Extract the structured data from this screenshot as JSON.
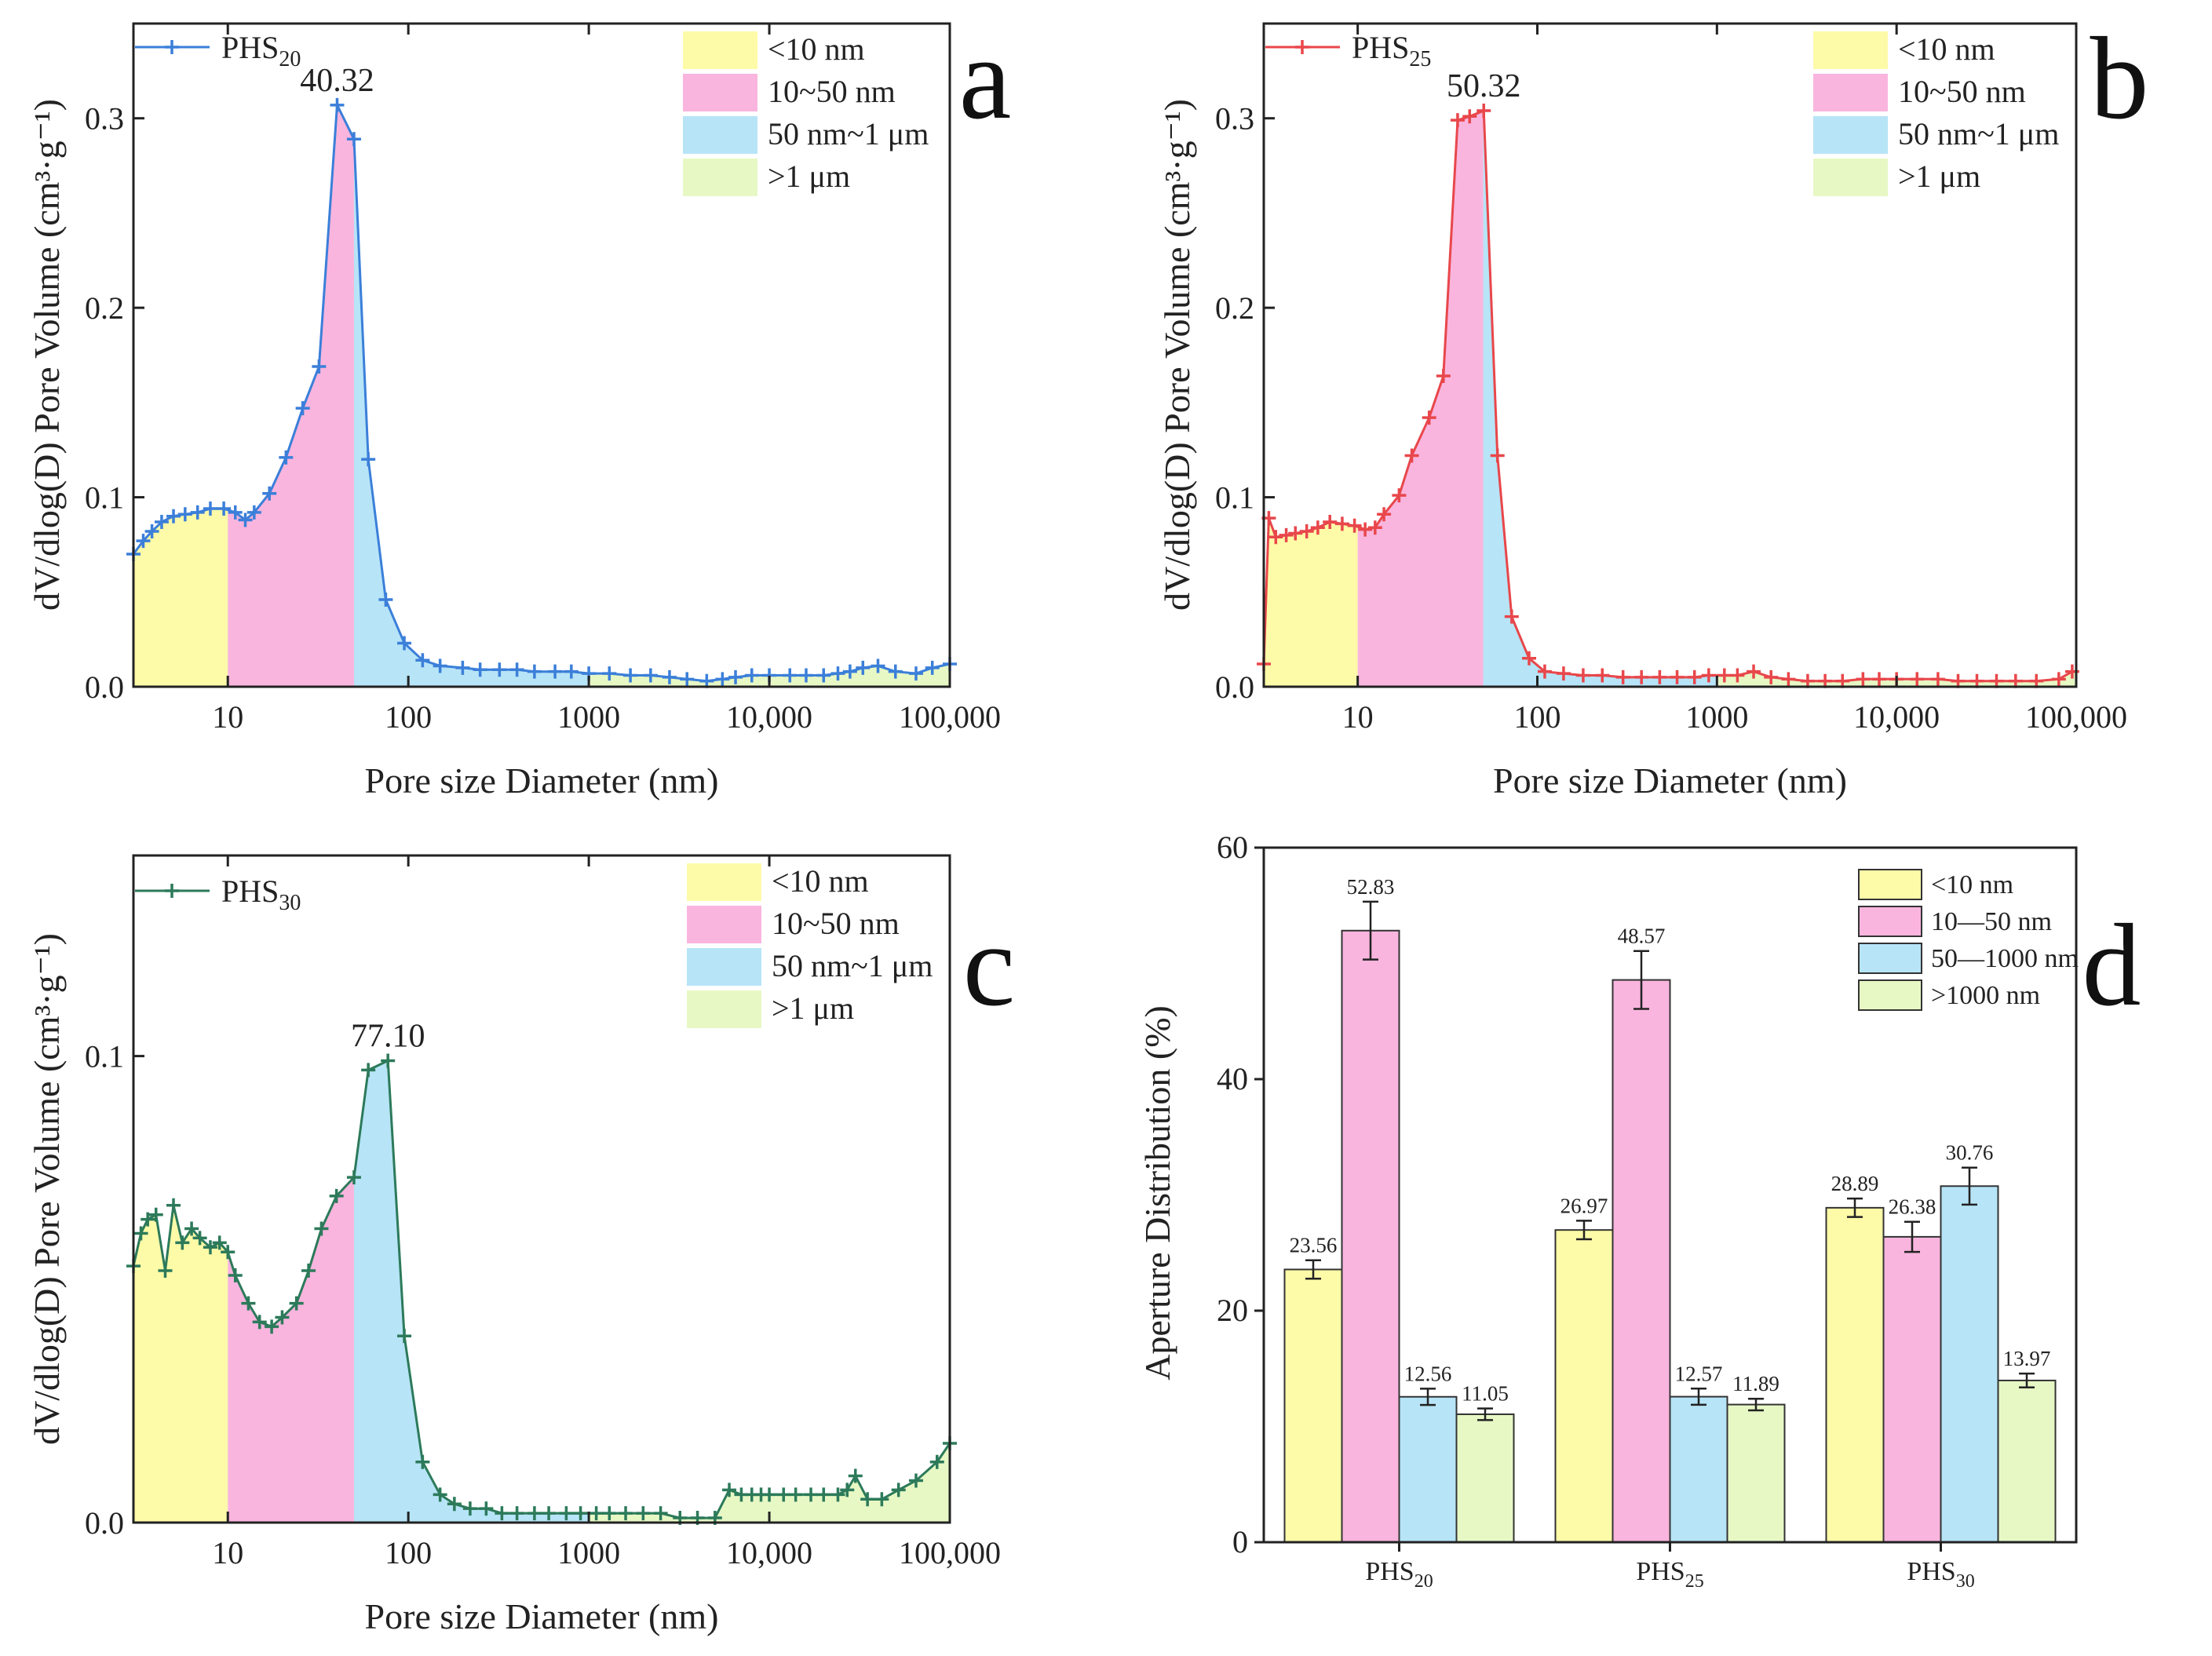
{
  "chart_data": [
    {
      "id": "a",
      "type": "line",
      "panel_letter": "a",
      "series_name": "PHS",
      "series_sub": "20",
      "color": "#3b7fd9",
      "peak_label": "40.32",
      "peak_x": 40.32,
      "xlabel": "Pore size Diameter (nm)",
      "ylabel": "dV/dlog(D) Pore Volume (cm³·g⁻¹)",
      "xscale": "log",
      "xlim": [
        3,
        100000
      ],
      "ylim": [
        0,
        0.35
      ],
      "xticks": [
        10,
        100,
        1000,
        10000,
        100000
      ],
      "xtick_labels": [
        "10",
        "100",
        "1000",
        "10,000",
        "100,000"
      ],
      "yticks": [
        0.0,
        0.1,
        0.2,
        0.3
      ],
      "ytick_labels": [
        "0.0",
        "0.1",
        "0.2",
        "0.3"
      ],
      "x": [
        3,
        3.4,
        3.8,
        4.3,
        5,
        5.8,
        6.8,
        8,
        9.5,
        11,
        12.5,
        14,
        17,
        21,
        26,
        32,
        40.32,
        50,
        60,
        75,
        95,
        120,
        150,
        200,
        250,
        320,
        400,
        500,
        650,
        800,
        1000,
        1300,
        1700,
        2200,
        2800,
        3500,
        4500,
        5500,
        6500,
        8000,
        10000,
        13000,
        16000,
        20000,
        24000,
        28000,
        33000,
        40000,
        50000,
        65000,
        80000,
        100000
      ],
      "y": [
        0.07,
        0.077,
        0.082,
        0.087,
        0.09,
        0.091,
        0.092,
        0.094,
        0.094,
        0.092,
        0.088,
        0.092,
        0.102,
        0.121,
        0.147,
        0.169,
        0.307,
        0.289,
        0.12,
        0.046,
        0.023,
        0.014,
        0.011,
        0.01,
        0.009,
        0.009,
        0.009,
        0.008,
        0.008,
        0.008,
        0.007,
        0.007,
        0.006,
        0.006,
        0.005,
        0.004,
        0.003,
        0.004,
        0.005,
        0.006,
        0.006,
        0.006,
        0.006,
        0.006,
        0.007,
        0.008,
        0.01,
        0.011,
        0.008,
        0.007,
        0.01,
        0.012
      ]
    },
    {
      "id": "b",
      "type": "line",
      "panel_letter": "b",
      "series_name": "PHS",
      "series_sub": "25",
      "color": "#e8474b",
      "peak_label": "50.32",
      "peak_x": 50.32,
      "xlabel": "Pore size Diameter (nm)",
      "ylabel": "dV/dlog(D) Pore Volume (cm³·g⁻¹)",
      "xscale": "log",
      "xlim": [
        3,
        100000
      ],
      "ylim": [
        0,
        0.35
      ],
      "xticks": [
        10,
        100,
        1000,
        10000,
        100000
      ],
      "xtick_labels": [
        "10",
        "100",
        "1000",
        "10,000",
        "100,000"
      ],
      "yticks": [
        0.0,
        0.1,
        0.2,
        0.3
      ],
      "ytick_labels": [
        "0.0",
        "0.1",
        "0.2",
        "0.3"
      ],
      "x": [
        3,
        3.2,
        3.5,
        4,
        4.5,
        5.2,
        6,
        7,
        8.2,
        9.6,
        11,
        12.5,
        14,
        17,
        20,
        25,
        30,
        36,
        42,
        50.32,
        60,
        72,
        90,
        110,
        140,
        180,
        230,
        300,
        380,
        480,
        600,
        750,
        900,
        1100,
        1300,
        1600,
        2000,
        2500,
        3200,
        4000,
        5000,
        6500,
        8000,
        10000,
        13000,
        17000,
        22000,
        28000,
        36000,
        46000,
        60000,
        80000,
        95000
      ],
      "y": [
        0.012,
        0.089,
        0.079,
        0.08,
        0.081,
        0.082,
        0.084,
        0.087,
        0.086,
        0.085,
        0.083,
        0.084,
        0.091,
        0.101,
        0.122,
        0.142,
        0.164,
        0.299,
        0.301,
        0.304,
        0.122,
        0.037,
        0.015,
        0.008,
        0.007,
        0.006,
        0.006,
        0.005,
        0.005,
        0.005,
        0.005,
        0.005,
        0.006,
        0.006,
        0.006,
        0.008,
        0.005,
        0.004,
        0.003,
        0.003,
        0.003,
        0.004,
        0.004,
        0.004,
        0.004,
        0.004,
        0.003,
        0.003,
        0.003,
        0.003,
        0.003,
        0.004,
        0.008
      ]
    },
    {
      "id": "c",
      "type": "line",
      "panel_letter": "c",
      "series_name": "PHS",
      "series_sub": "30",
      "color": "#2c7a5a",
      "peak_label": "77.10",
      "peak_x": 77.1,
      "xlabel": "Pore size Diameter (nm)",
      "ylabel": "dV/dlog(D) Pore Volume (cm³·g⁻¹)",
      "xscale": "log",
      "xlim": [
        3,
        100000
      ],
      "ylim": [
        0,
        0.143
      ],
      "xticks": [
        10,
        100,
        1000,
        10000,
        100000
      ],
      "xtick_labels": [
        "10",
        "100",
        "1000",
        "10,000",
        "100,000"
      ],
      "yticks": [
        0.0,
        0.1
      ],
      "ytick_labels": [
        "0.0",
        "0.1"
      ],
      "x": [
        3,
        3.3,
        3.6,
        4,
        4.5,
        5,
        5.6,
        6.3,
        7,
        8,
        9,
        10,
        11,
        13,
        15,
        17.5,
        20,
        24,
        28,
        33,
        40,
        50,
        60,
        77.1,
        95,
        120,
        150,
        180,
        220,
        270,
        330,
        400,
        500,
        600,
        750,
        900,
        1100,
        1300,
        1600,
        2000,
        2500,
        3200,
        4000,
        5000,
        6000,
        7000,
        8000,
        9000,
        10000,
        12000,
        14000,
        17000,
        20000,
        24000,
        27000,
        30000,
        35000,
        42000,
        52000,
        65000,
        85000,
        100000
      ],
      "y": [
        0.055,
        0.062,
        0.065,
        0.066,
        0.054,
        0.068,
        0.06,
        0.063,
        0.061,
        0.059,
        0.06,
        0.058,
        0.053,
        0.047,
        0.043,
        0.042,
        0.044,
        0.047,
        0.054,
        0.063,
        0.07,
        0.074,
        0.097,
        0.099,
        0.04,
        0.013,
        0.006,
        0.004,
        0.003,
        0.003,
        0.002,
        0.002,
        0.002,
        0.002,
        0.002,
        0.002,
        0.002,
        0.002,
        0.002,
        0.002,
        0.002,
        0.001,
        0.001,
        0.001,
        0.007,
        0.006,
        0.006,
        0.006,
        0.006,
        0.006,
        0.006,
        0.006,
        0.006,
        0.006,
        0.007,
        0.01,
        0.005,
        0.005,
        0.007,
        0.009,
        0.013,
        0.017
      ]
    },
    {
      "id": "d",
      "type": "bar",
      "panel_letter": "d",
      "ylabel": "Aperture Distribution (%)",
      "ylim": [
        0,
        60
      ],
      "yticks": [
        0,
        20,
        40,
        60
      ],
      "ytick_labels": [
        "0",
        "20",
        "40",
        "60"
      ],
      "categories": [
        {
          "name": "PHS",
          "sub": "20"
        },
        {
          "name": "PHS",
          "sub": "25"
        },
        {
          "name": "PHS",
          "sub": "30"
        }
      ],
      "series": [
        {
          "name": "<10 nm",
          "color": "#fdfaa8",
          "values": [
            23.56,
            26.97,
            28.89
          ],
          "errors": [
            0.8,
            0.8,
            0.8
          ],
          "labels": [
            "23.56",
            "26.97",
            "28.89"
          ]
        },
        {
          "name": "10—50 nm",
          "color": "#f9b5de",
          "values": [
            52.83,
            48.57,
            26.38
          ],
          "errors": [
            2.5,
            2.5,
            1.3
          ],
          "labels": [
            "52.83",
            "48.57",
            "26.38"
          ]
        },
        {
          "name": "50—1000 nm",
          "color": "#b7e4f7",
          "values": [
            12.56,
            12.57,
            30.76
          ],
          "errors": [
            0.7,
            0.7,
            1.6
          ],
          "labels": [
            "12.56",
            "12.57",
            "30.76"
          ]
        },
        {
          "name": ">1000 nm",
          "color": "#e7f8c5",
          "values": [
            11.05,
            11.89,
            13.97
          ],
          "errors": [
            0.5,
            0.5,
            0.6
          ],
          "labels": [
            "11.05",
            "11.89",
            "13.97"
          ]
        }
      ]
    }
  ],
  "legend_regions": [
    {
      "label": "<10 nm",
      "color": "#fdfaa8"
    },
    {
      "label": "10~50 nm",
      "color": "#f9b5de"
    },
    {
      "label": "50 nm~1 μm",
      "color": "#b7e4f7"
    },
    {
      "label": ">1 μm",
      "color": "#e7f8c5"
    }
  ],
  "region_fill": [
    "#fdfaa8",
    "#f9b5de",
    "#b7e4f7",
    "#e7f8c5"
  ]
}
